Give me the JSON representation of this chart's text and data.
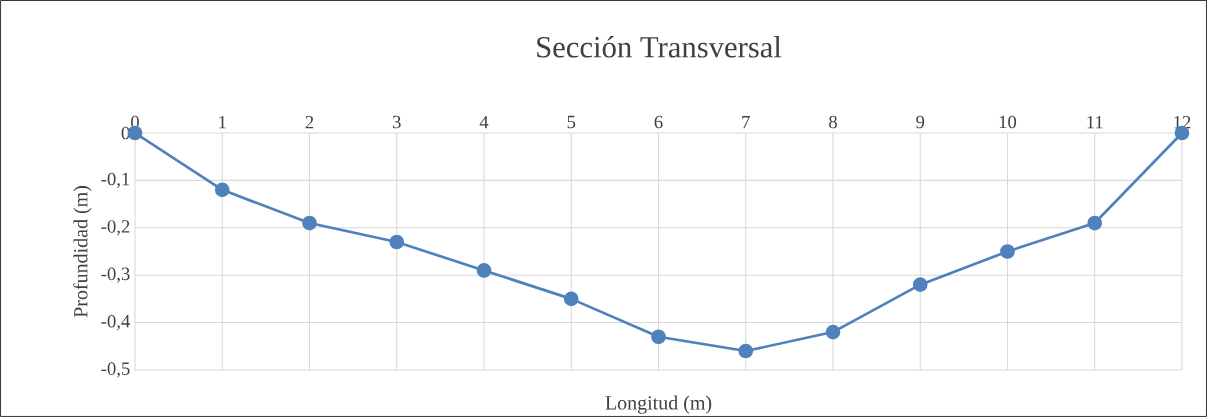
{
  "chart_data": {
    "type": "line",
    "title": "Sección Transversal",
    "xlabel": "Longitud (m)",
    "ylabel": "Profundidad (m)",
    "x": [
      0,
      1,
      2,
      3,
      4,
      5,
      6,
      7,
      8,
      9,
      10,
      11,
      12
    ],
    "series": [
      {
        "color": "#4f81bd",
        "values": [
          0,
          -0.12,
          -0.19,
          -0.23,
          -0.29,
          -0.35,
          -0.43,
          -0.46,
          -0.42,
          -0.32,
          -0.25,
          -0.19,
          0
        ]
      }
    ],
    "xlim": [
      0,
      12
    ],
    "xticks": [
      0,
      1,
      2,
      3,
      4,
      5,
      6,
      7,
      8,
      9,
      10,
      11,
      12
    ],
    "ylim": [
      -0.5,
      0
    ],
    "yticks": [
      {
        "value": -0.5,
        "label": "-0,5"
      },
      {
        "value": -0.4,
        "label": "-0,4"
      },
      {
        "value": -0.3,
        "label": "-0,3"
      },
      {
        "value": -0.2,
        "label": "-0,2"
      },
      {
        "value": -0.1,
        "label": "-0,1"
      },
      {
        "value": 0,
        "label": "0"
      }
    ],
    "grid": true,
    "marker": "circle",
    "line_style": "solid",
    "legend": false
  }
}
